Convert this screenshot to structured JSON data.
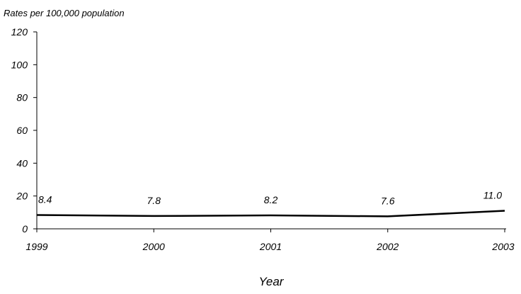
{
  "chart_data": {
    "type": "line",
    "ylabel": "Rates per 100,000 population",
    "xlabel": "Year",
    "x": [
      "1999",
      "2000",
      "2001",
      "2002",
      "2003"
    ],
    "series": [
      {
        "values": [
          8.4,
          7.8,
          8.2,
          7.6,
          11.0
        ]
      }
    ],
    "data_labels": [
      "8.4",
      "7.8",
      "8.2",
      "7.6",
      "11.0"
    ],
    "ylim": [
      0,
      120
    ],
    "yticks": [
      0,
      20,
      40,
      60,
      80,
      100,
      120
    ],
    "ytick_labels": [
      "0",
      "20",
      "40",
      "60",
      "80",
      "100",
      "120"
    ],
    "grid": false,
    "line_color": "#000000"
  }
}
